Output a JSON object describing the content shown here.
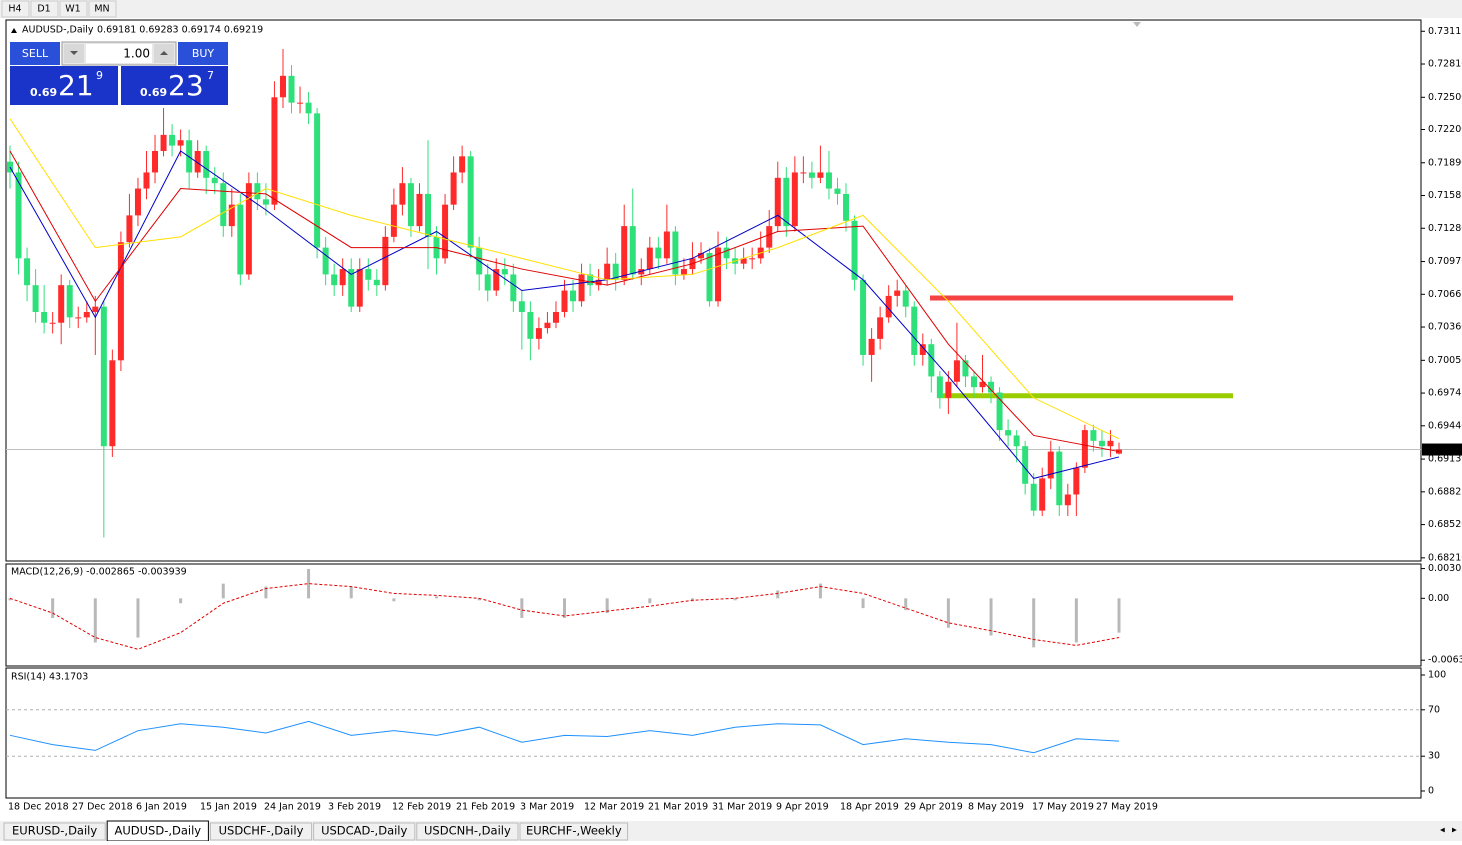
{
  "toolbar": {
    "timeframes": [
      "H4",
      "D1",
      "W1",
      "MN"
    ]
  },
  "trade_panel": {
    "sell": "SELL",
    "lots": "1.00",
    "buy": "BUY",
    "sell_price": {
      "prefix": "0.69",
      "big": "21",
      "small": "9"
    },
    "buy_price": {
      "prefix": "0.69",
      "big": "23",
      "small": "7"
    }
  },
  "chart_data": [
    {
      "type": "candlestick",
      "title": "AUDUSD-,Daily",
      "ohlc_label": "0.69181 0.69283 0.69174 0.69219",
      "up_color": "#ff2a2a",
      "down_color": "#2ee07a",
      "open": [
        0.719,
        0.718,
        0.71,
        0.7075,
        0.705,
        0.704,
        0.704,
        0.7075,
        0.7045,
        0.7045,
        0.705,
        0.7055,
        0.6925,
        0.7005,
        0.7115,
        0.714,
        0.7165,
        0.718,
        0.72,
        0.7215,
        0.7205,
        0.721,
        0.718,
        0.72,
        0.7175,
        0.717,
        0.713,
        0.715,
        0.7085,
        0.717,
        0.7155,
        0.715,
        0.725,
        0.727,
        0.7245,
        0.7245,
        0.7235,
        0.711,
        0.7085,
        0.7075,
        0.709,
        0.7055,
        0.709,
        0.708,
        0.7075,
        0.712,
        0.715,
        0.717,
        0.713,
        0.716,
        0.712,
        0.71,
        0.715,
        0.718,
        0.7195,
        0.711,
        0.7085,
        0.707,
        0.709,
        0.7085,
        0.706,
        0.705,
        0.7025,
        0.7035,
        0.704,
        0.705,
        0.707,
        0.706,
        0.7085,
        0.7075,
        0.708,
        0.7095,
        0.708,
        0.713,
        0.7085,
        0.709,
        0.711,
        0.71,
        0.7125,
        0.7085,
        0.709,
        0.71,
        0.7105,
        0.706,
        0.711,
        0.71,
        0.7095,
        0.71,
        0.71,
        0.711,
        0.713,
        0.7175,
        0.713,
        0.718,
        0.718,
        0.7175,
        0.718,
        0.7165,
        0.716,
        0.7135,
        0.708,
        0.701,
        0.7025,
        0.7045,
        0.7065,
        0.707,
        0.7055,
        0.701,
        0.702,
        0.699,
        0.697,
        0.6985,
        0.7005,
        0.699,
        0.698,
        0.6985,
        0.6975,
        0.694,
        0.6935,
        0.6925,
        0.689,
        0.6865,
        0.6895,
        0.692,
        0.687,
        0.688,
        0.6905,
        0.694,
        0.693,
        0.6925,
        0.69181
      ],
      "high": [
        0.7205,
        0.719,
        0.711,
        0.709,
        0.7075,
        0.705,
        0.7085,
        0.708,
        0.7055,
        0.706,
        0.7065,
        0.706,
        0.7015,
        0.7125,
        0.716,
        0.7175,
        0.72,
        0.7215,
        0.724,
        0.7225,
        0.722,
        0.722,
        0.721,
        0.7205,
        0.7185,
        0.718,
        0.7165,
        0.716,
        0.718,
        0.718,
        0.717,
        0.7265,
        0.7295,
        0.728,
        0.726,
        0.7255,
        0.724,
        0.712,
        0.7095,
        0.71,
        0.71,
        0.71,
        0.71,
        0.709,
        0.713,
        0.7165,
        0.7185,
        0.7175,
        0.717,
        0.721,
        0.713,
        0.716,
        0.7195,
        0.7205,
        0.72,
        0.712,
        0.7095,
        0.71,
        0.71,
        0.7095,
        0.707,
        0.706,
        0.7045,
        0.705,
        0.706,
        0.708,
        0.708,
        0.7095,
        0.7095,
        0.709,
        0.711,
        0.7105,
        0.715,
        0.7165,
        0.71,
        0.712,
        0.712,
        0.715,
        0.713,
        0.71,
        0.7115,
        0.7115,
        0.711,
        0.7125,
        0.712,
        0.711,
        0.711,
        0.711,
        0.7125,
        0.7145,
        0.719,
        0.7185,
        0.7195,
        0.7195,
        0.719,
        0.7205,
        0.72,
        0.7175,
        0.717,
        0.714,
        0.7085,
        0.7035,
        0.7055,
        0.7075,
        0.708,
        0.7075,
        0.706,
        0.703,
        0.7025,
        0.6995,
        0.6995,
        0.704,
        0.701,
        0.6995,
        0.701,
        0.699,
        0.698,
        0.695,
        0.694,
        0.693,
        0.69,
        0.6905,
        0.693,
        0.6925,
        0.689,
        0.691,
        0.6945,
        0.6945,
        0.694,
        0.694,
        0.69283
      ],
      "low": [
        0.7165,
        0.7085,
        0.706,
        0.704,
        0.703,
        0.703,
        0.702,
        0.7035,
        0.7035,
        0.704,
        0.701,
        0.684,
        0.6915,
        0.6995,
        0.711,
        0.713,
        0.7155,
        0.717,
        0.7195,
        0.7195,
        0.7195,
        0.7165,
        0.7175,
        0.716,
        0.716,
        0.712,
        0.712,
        0.7075,
        0.708,
        0.7145,
        0.714,
        0.7145,
        0.724,
        0.7235,
        0.7235,
        0.7225,
        0.71,
        0.7075,
        0.7065,
        0.7065,
        0.705,
        0.705,
        0.707,
        0.7065,
        0.707,
        0.7115,
        0.714,
        0.712,
        0.7125,
        0.709,
        0.7085,
        0.7095,
        0.7145,
        0.717,
        0.71,
        0.707,
        0.706,
        0.7065,
        0.7075,
        0.705,
        0.7015,
        0.7005,
        0.7015,
        0.703,
        0.7035,
        0.7045,
        0.705,
        0.7055,
        0.7065,
        0.707,
        0.7075,
        0.707,
        0.7075,
        0.708,
        0.7075,
        0.7085,
        0.709,
        0.7095,
        0.7075,
        0.708,
        0.7085,
        0.7095,
        0.7055,
        0.7055,
        0.709,
        0.7085,
        0.709,
        0.709,
        0.7095,
        0.7105,
        0.7125,
        0.712,
        0.7125,
        0.717,
        0.7165,
        0.717,
        0.7155,
        0.715,
        0.7125,
        0.707,
        0.7,
        0.6985,
        0.7015,
        0.704,
        0.7055,
        0.7045,
        0.7,
        0.7,
        0.6975,
        0.696,
        0.6955,
        0.698,
        0.698,
        0.697,
        0.6975,
        0.6965,
        0.693,
        0.6925,
        0.691,
        0.688,
        0.686,
        0.686,
        0.6885,
        0.686,
        0.686,
        0.686,
        0.69,
        0.692,
        0.6915,
        0.6915,
        0.69174
      ],
      "close": [
        0.718,
        0.71,
        0.7075,
        0.705,
        0.704,
        0.704,
        0.7075,
        0.7045,
        0.7045,
        0.705,
        0.7055,
        0.6925,
        0.7005,
        0.7115,
        0.714,
        0.7165,
        0.718,
        0.72,
        0.7215,
        0.7205,
        0.721,
        0.718,
        0.72,
        0.7175,
        0.717,
        0.713,
        0.715,
        0.7085,
        0.717,
        0.7155,
        0.715,
        0.725,
        0.727,
        0.7245,
        0.7245,
        0.7235,
        0.711,
        0.7085,
        0.7075,
        0.709,
        0.7055,
        0.709,
        0.708,
        0.7075,
        0.712,
        0.715,
        0.717,
        0.713,
        0.716,
        0.712,
        0.71,
        0.715,
        0.718,
        0.7195,
        0.711,
        0.7085,
        0.707,
        0.709,
        0.7085,
        0.706,
        0.705,
        0.7025,
        0.7035,
        0.704,
        0.705,
        0.707,
        0.706,
        0.7085,
        0.7075,
        0.708,
        0.7095,
        0.708,
        0.713,
        0.7085,
        0.709,
        0.711,
        0.71,
        0.7125,
        0.7085,
        0.709,
        0.71,
        0.7105,
        0.706,
        0.711,
        0.71,
        0.7095,
        0.71,
        0.71,
        0.711,
        0.713,
        0.7175,
        0.713,
        0.718,
        0.718,
        0.7175,
        0.718,
        0.7165,
        0.716,
        0.7135,
        0.708,
        0.701,
        0.7025,
        0.7045,
        0.7065,
        0.707,
        0.7055,
        0.701,
        0.702,
        0.699,
        0.697,
        0.6985,
        0.7005,
        0.699,
        0.698,
        0.6985,
        0.6975,
        0.694,
        0.6935,
        0.6925,
        0.689,
        0.6865,
        0.6895,
        0.692,
        0.687,
        0.688,
        0.6905,
        0.694,
        0.693,
        0.6925,
        0.693,
        0.69219
      ],
      "ylim": [
        0.6819,
        0.7322
      ],
      "yticks": [
        {
          "value": 0.73115,
          "label": "0.73115"
        },
        {
          "value": 0.7281,
          "label": "0.72810"
        },
        {
          "value": 0.725,
          "label": "0.72500"
        },
        {
          "value": 0.722,
          "label": "0.72200"
        },
        {
          "value": 0.7189,
          "label": "0.71890"
        },
        {
          "value": 0.71585,
          "label": "0.71585"
        },
        {
          "value": 0.7128,
          "label": "0.71280"
        },
        {
          "value": 0.7097,
          "label": "0.70970"
        },
        {
          "value": 0.70665,
          "label": "0.70665"
        },
        {
          "value": 0.7036,
          "label": "0.70360"
        },
        {
          "value": 0.7005,
          "label": "0.70050"
        },
        {
          "value": 0.69745,
          "label": "0.69745"
        },
        {
          "value": 0.6944,
          "label": "0.69440"
        },
        {
          "value": 0.6913,
          "label": "0.69130"
        },
        {
          "value": 0.68825,
          "label": "0.68825"
        },
        {
          "value": 0.6852,
          "label": "0.68520"
        },
        {
          "value": 0.6821,
          "label": "0.68210"
        }
      ],
      "xlabels": [
        "18 Dec 2018",
        "27 Dec 2018",
        "6 Jan 2019",
        "15 Jan 2019",
        "24 Jan 2019",
        "3 Feb 2019",
        "12 Feb 2019",
        "21 Feb 2019",
        "3 Mar 2019",
        "12 Mar 2019",
        "21 Mar 2019",
        "31 Mar 2019",
        "9 Apr 2019",
        "18 Apr 2019",
        "29 Apr 2019",
        "8 May 2019",
        "17 May 2019",
        "27 May 2019"
      ],
      "moving_averages": [
        {
          "color": "#0000c8",
          "x": [
            0,
            10,
            20,
            30,
            40,
            50,
            60,
            70,
            80,
            90,
            100,
            110,
            120,
            130
          ],
          "values": [
            0.7185,
            0.7045,
            0.72,
            0.7145,
            0.7085,
            0.7125,
            0.707,
            0.708,
            0.71,
            0.714,
            0.708,
            0.699,
            0.6895,
            0.6915
          ]
        },
        {
          "color": "#e00000",
          "x": [
            0,
            10,
            20,
            30,
            40,
            50,
            60,
            70,
            80,
            90,
            100,
            110,
            120,
            130
          ],
          "values": [
            0.72,
            0.706,
            0.7165,
            0.716,
            0.711,
            0.711,
            0.709,
            0.7075,
            0.7095,
            0.7125,
            0.713,
            0.702,
            0.6935,
            0.692
          ]
        },
        {
          "color": "#ffe000",
          "x": [
            0,
            10,
            20,
            30,
            40,
            50,
            60,
            70,
            80,
            90,
            100,
            110,
            120,
            130
          ],
          "values": [
            0.723,
            0.711,
            0.712,
            0.7165,
            0.714,
            0.712,
            0.71,
            0.708,
            0.7085,
            0.711,
            0.714,
            0.706,
            0.697,
            0.6932
          ]
        }
      ],
      "levels": [
        {
          "value": 0.7063,
          "color": "#f54242"
        },
        {
          "value": 0.6972,
          "color": "#9acd00"
        }
      ],
      "price_line": {
        "value": 0.69219,
        "label": "0.69219"
      }
    },
    {
      "type": "macd",
      "title": "MACD(12,26,9) -0.002865 -0.003939",
      "x": [
        0,
        5,
        10,
        15,
        20,
        25,
        30,
        35,
        40,
        45,
        50,
        55,
        60,
        65,
        70,
        75,
        80,
        85,
        90,
        95,
        100,
        105,
        110,
        115,
        120,
        125,
        130
      ],
      "histogram": [
        -0.0002,
        -0.002,
        -0.0045,
        -0.004,
        -0.0005,
        0.0015,
        0.0012,
        0.003,
        0.0012,
        -0.0003,
        0.0002,
        -0.0002,
        -0.002,
        -0.002,
        -0.0015,
        -0.0005,
        -0.0003,
        -0.0002,
        0.0008,
        0.0015,
        -0.001,
        -0.0012,
        -0.003,
        -0.0038,
        -0.005,
        -0.0045,
        -0.0035
      ],
      "signal": [
        0,
        -0.0015,
        -0.004,
        -0.0052,
        -0.0035,
        -0.0005,
        0.001,
        0.0015,
        0.0012,
        0.0005,
        0.0003,
        0,
        -0.0012,
        -0.0018,
        -0.0013,
        -0.0008,
        -0.0002,
        0,
        0.0005,
        0.0012,
        0.0005,
        -0.001,
        -0.0025,
        -0.0033,
        -0.0042,
        -0.0048,
        -0.004
      ],
      "histogram_color": "#b8b8b8",
      "signal_color": "#e00000",
      "ylim": [
        -0.0068,
        0.0034
      ],
      "yticks": [
        0.003035,
        {
          "value": 0,
          "label": "0.00"
        },
        -0.00631
      ]
    },
    {
      "type": "line",
      "title": "RSI(14) 43.1703",
      "x": [
        0,
        5,
        10,
        15,
        20,
        25,
        30,
        35,
        40,
        45,
        50,
        55,
        60,
        65,
        70,
        75,
        80,
        85,
        90,
        95,
        100,
        105,
        110,
        115,
        120,
        125,
        130
      ],
      "values": [
        48,
        40,
        35,
        52,
        58,
        55,
        50,
        60,
        48,
        52,
        48,
        55,
        42,
        48,
        47,
        52,
        48,
        55,
        58,
        57,
        40,
        45,
        42,
        40,
        33,
        45,
        43
      ],
      "color": "#1e90ff",
      "ylim": [
        0,
        100
      ],
      "yticks": [
        0,
        30,
        70,
        100
      ],
      "levels": [
        30,
        70
      ]
    }
  ],
  "tabs": [
    "EURUSD-,Daily",
    "AUDUSD-,Daily",
    "USDCHF-,Daily",
    "USDCAD-,Daily",
    "USDCNH-,Daily",
    "EURCHF-,Weekly"
  ],
  "active_tab": 1
}
